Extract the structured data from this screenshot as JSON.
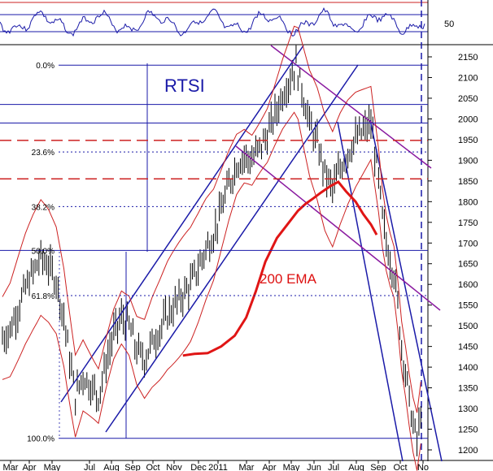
{
  "chart_data": {
    "type": "line",
    "title": "RTSI",
    "indicator_panel": {
      "tick_label": "50"
    },
    "ylim": [
      1190,
      2185
    ],
    "y_ticks": [
      1200,
      1250,
      1300,
      1350,
      1400,
      1450,
      1500,
      1550,
      1600,
      1650,
      1700,
      1750,
      1800,
      1850,
      1900,
      1950,
      2000,
      2050,
      2100,
      2150
    ],
    "x_tick_labels": [
      "Mar",
      "Apr",
      "May",
      "Jul",
      "Aug",
      "Sep",
      "Oct",
      "Nov",
      "Dec",
      "2011",
      "Mar",
      "Apr",
      "May",
      "Jun",
      "Jul",
      "Aug",
      "Sep",
      "Oct",
      "No"
    ],
    "fib_levels": [
      {
        "label": "0.0%",
        "value": 2130
      },
      {
        "label": "23.6%",
        "value": 1920
      },
      {
        "label": "38.2%",
        "value": 1788
      },
      {
        "label": "50.0%",
        "value": 1682
      },
      {
        "label": "61.8%",
        "value": 1573
      },
      {
        "label": "100.0%",
        "value": 1228
      }
    ],
    "horizontal_levels": [
      2035,
      1990
    ],
    "dashed_red_levels": [
      1948,
      1855
    ],
    "series": [
      {
        "name": "200 EMA",
        "color": "#e01515",
        "points": [
          [
            47.0,
            1428
          ],
          [
            50.0,
            1432
          ],
          [
            53.5,
            1434
          ],
          [
            57.0,
            1450
          ],
          [
            60.5,
            1476
          ],
          [
            63.5,
            1520
          ],
          [
            66.0,
            1583
          ],
          [
            68.5,
            1655
          ],
          [
            71.5,
            1712
          ],
          [
            74.5,
            1748
          ],
          [
            77.0,
            1778
          ],
          [
            79.0,
            1795
          ],
          [
            81.0,
            1808
          ],
          [
            83.0,
            1822
          ],
          [
            85.5,
            1838
          ],
          [
            87.5,
            1848
          ],
          [
            89.5,
            1825
          ],
          [
            92.0,
            1800
          ],
          [
            94.0,
            1770
          ],
          [
            96.0,
            1745
          ],
          [
            97.5,
            1720
          ]
        ]
      }
    ],
    "price_close": [
      [
        0,
        1470
      ],
      [
        2,
        1490
      ],
      [
        4,
        1540
      ],
      [
        6,
        1590
      ],
      [
        8,
        1630
      ],
      [
        10,
        1665
      ],
      [
        12,
        1645
      ],
      [
        14,
        1610
      ],
      [
        16,
        1520
      ],
      [
        17.5,
        1420
      ],
      [
        19,
        1330
      ],
      [
        21,
        1380
      ],
      [
        23,
        1355
      ],
      [
        25,
        1330
      ],
      [
        27,
        1410
      ],
      [
        29,
        1480
      ],
      [
        31,
        1520
      ],
      [
        33,
        1500
      ],
      [
        35,
        1440
      ],
      [
        37,
        1420
      ],
      [
        39,
        1460
      ],
      [
        41,
        1490
      ],
      [
        43,
        1525
      ],
      [
        45,
        1550
      ],
      [
        47,
        1575
      ],
      [
        49,
        1600
      ],
      [
        51,
        1640
      ],
      [
        53,
        1685
      ],
      [
        55,
        1720
      ],
      [
        57,
        1780
      ],
      [
        59,
        1840
      ],
      [
        61,
        1890
      ],
      [
        63,
        1910
      ],
      [
        65,
        1900
      ],
      [
        67,
        1930
      ],
      [
        69,
        1960
      ],
      [
        71,
        2010
      ],
      [
        73,
        2060
      ],
      [
        75,
        2100
      ],
      [
        76.5,
        2130
      ],
      [
        78,
        2070
      ],
      [
        80,
        1990
      ],
      [
        82,
        1940
      ],
      [
        84,
        1870
      ],
      [
        86,
        1830
      ],
      [
        88,
        1880
      ],
      [
        90,
        1920
      ],
      [
        92,
        1950
      ],
      [
        94,
        1970
      ],
      [
        96,
        1990
      ],
      [
        97,
        1920
      ],
      [
        98,
        1850
      ],
      [
        99,
        1760
      ],
      [
        100,
        1700
      ],
      [
        101,
        1660
      ],
      [
        102,
        1630
      ],
      [
        103,
        1550
      ],
      [
        104,
        1450
      ],
      [
        105,
        1390
      ],
      [
        106,
        1320
      ],
      [
        107,
        1260
      ],
      [
        108,
        1220
      ],
      [
        109,
        1290
      ]
    ]
  }
}
